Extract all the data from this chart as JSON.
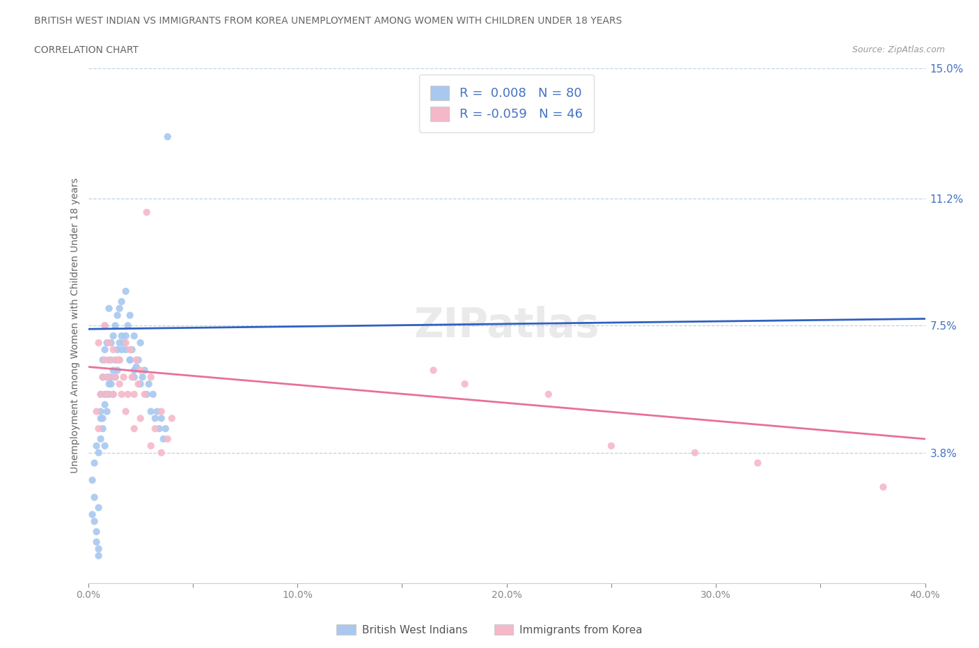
{
  "title_line1": "BRITISH WEST INDIAN VS IMMIGRANTS FROM KOREA UNEMPLOYMENT AMONG WOMEN WITH CHILDREN UNDER 18 YEARS",
  "title_line2": "CORRELATION CHART",
  "source_text": "Source: ZipAtlas.com",
  "ylabel": "Unemployment Among Women with Children Under 18 years",
  "xlim": [
    0.0,
    0.4
  ],
  "ylim": [
    0.0,
    0.15
  ],
  "xtick_labels": [
    "0.0%",
    "",
    "10.0%",
    "",
    "20.0%",
    "",
    "30.0%",
    "",
    "40.0%"
  ],
  "xtick_vals": [
    0.0,
    0.05,
    0.1,
    0.15,
    0.2,
    0.25,
    0.3,
    0.35,
    0.4
  ],
  "ytick_labels_right": [
    "15.0%",
    "11.2%",
    "7.5%",
    "3.8%"
  ],
  "ytick_vals_right": [
    0.15,
    0.112,
    0.075,
    0.038
  ],
  "hgrid_vals": [
    0.15,
    0.112,
    0.075,
    0.038
  ],
  "R_blue": 0.008,
  "N_blue": 80,
  "R_pink": -0.059,
  "N_pink": 46,
  "legend_label_blue": "British West Indians",
  "legend_label_pink": "Immigrants from Korea",
  "color_blue": "#a8c8f0",
  "color_pink": "#f5b8c8",
  "color_blue_line": "#3060c0",
  "color_pink_line": "#e8709a",
  "color_text_blue": "#4472c4",
  "color_grid": "#b8cce4",
  "watermark": "ZIPatlas",
  "background_color": "#ffffff",
  "blue_scatter_x": [
    0.002,
    0.003,
    0.003,
    0.004,
    0.004,
    0.005,
    0.005,
    0.005,
    0.006,
    0.006,
    0.006,
    0.007,
    0.007,
    0.007,
    0.008,
    0.008,
    0.008,
    0.008,
    0.009,
    0.009,
    0.009,
    0.01,
    0.01,
    0.01,
    0.011,
    0.011,
    0.012,
    0.012,
    0.013,
    0.013,
    0.014,
    0.014,
    0.015,
    0.015,
    0.016,
    0.016,
    0.017,
    0.018,
    0.018,
    0.019,
    0.02,
    0.02,
    0.021,
    0.022,
    0.022,
    0.023,
    0.024,
    0.025,
    0.026,
    0.027,
    0.028,
    0.029,
    0.03,
    0.031,
    0.032,
    0.033,
    0.034,
    0.035,
    0.036,
    0.037,
    0.002,
    0.003,
    0.004,
    0.005,
    0.006,
    0.007,
    0.008,
    0.009,
    0.01,
    0.011,
    0.012,
    0.013,
    0.014,
    0.015,
    0.016,
    0.018,
    0.02,
    0.022,
    0.025,
    0.038
  ],
  "blue_scatter_y": [
    0.02,
    0.018,
    0.025,
    0.012,
    0.015,
    0.008,
    0.01,
    0.022,
    0.048,
    0.05,
    0.055,
    0.045,
    0.06,
    0.065,
    0.04,
    0.055,
    0.068,
    0.075,
    0.05,
    0.06,
    0.07,
    0.055,
    0.065,
    0.08,
    0.058,
    0.07,
    0.055,
    0.072,
    0.06,
    0.075,
    0.062,
    0.078,
    0.065,
    0.08,
    0.068,
    0.082,
    0.07,
    0.072,
    0.085,
    0.075,
    0.065,
    0.078,
    0.068,
    0.06,
    0.072,
    0.063,
    0.065,
    0.07,
    0.06,
    0.062,
    0.055,
    0.058,
    0.05,
    0.055,
    0.048,
    0.05,
    0.045,
    0.048,
    0.042,
    0.045,
    0.03,
    0.035,
    0.04,
    0.038,
    0.042,
    0.048,
    0.052,
    0.055,
    0.058,
    0.06,
    0.062,
    0.065,
    0.068,
    0.07,
    0.072,
    0.068,
    0.065,
    0.062,
    0.058,
    0.13
  ],
  "pink_scatter_x": [
    0.004,
    0.005,
    0.006,
    0.007,
    0.008,
    0.009,
    0.01,
    0.01,
    0.011,
    0.012,
    0.013,
    0.014,
    0.015,
    0.016,
    0.017,
    0.018,
    0.019,
    0.02,
    0.021,
    0.022,
    0.023,
    0.024,
    0.025,
    0.027,
    0.028,
    0.03,
    0.032,
    0.035,
    0.038,
    0.04,
    0.005,
    0.008,
    0.012,
    0.015,
    0.018,
    0.022,
    0.025,
    0.03,
    0.035,
    0.165,
    0.18,
    0.22,
    0.25,
    0.29,
    0.32,
    0.38
  ],
  "pink_scatter_y": [
    0.05,
    0.045,
    0.055,
    0.06,
    0.065,
    0.055,
    0.06,
    0.07,
    0.065,
    0.055,
    0.06,
    0.065,
    0.058,
    0.055,
    0.06,
    0.05,
    0.055,
    0.068,
    0.06,
    0.055,
    0.065,
    0.058,
    0.062,
    0.055,
    0.108,
    0.06,
    0.045,
    0.05,
    0.042,
    0.048,
    0.07,
    0.075,
    0.068,
    0.065,
    0.07,
    0.045,
    0.048,
    0.04,
    0.038,
    0.062,
    0.058,
    0.055,
    0.04,
    0.038,
    0.035,
    0.028
  ],
  "blue_line_x": [
    0.0,
    0.4
  ],
  "blue_line_y": [
    0.074,
    0.077
  ],
  "pink_line_x": [
    0.0,
    0.4
  ],
  "pink_line_y": [
    0.063,
    0.042
  ]
}
